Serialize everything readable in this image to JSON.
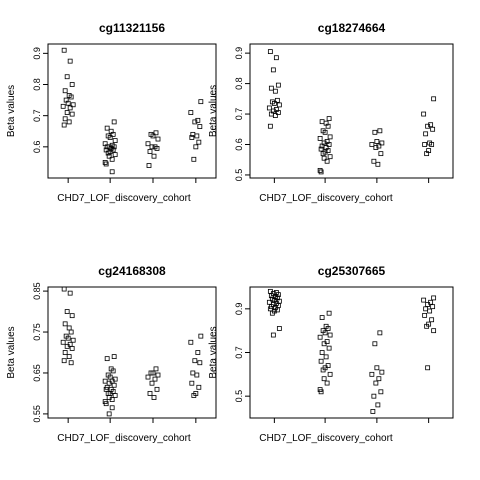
{
  "chart_data": [
    {
      "type": "scatter",
      "title": "cg11321156",
      "xlabel": "CHD7_LOF_discovery_cohort",
      "ylabel": "Beta values",
      "ylim": [
        0.5,
        0.93
      ],
      "yticks": [
        0.6,
        0.7,
        0.8,
        0.9
      ],
      "grid": false,
      "groups": [
        {
          "values": [
            0.91,
            0.875,
            0.825,
            0.8,
            0.78,
            0.765,
            0.76,
            0.75,
            0.74,
            0.735,
            0.73,
            0.725,
            0.71,
            0.705,
            0.69,
            0.68,
            0.67
          ]
        },
        {
          "values": [
            0.68,
            0.66,
            0.65,
            0.64,
            0.635,
            0.63,
            0.62,
            0.61,
            0.605,
            0.6,
            0.6,
            0.6,
            0.595,
            0.59,
            0.59,
            0.585,
            0.58,
            0.575,
            0.57,
            0.56,
            0.55,
            0.545,
            0.52
          ]
        },
        {
          "values": [
            0.645,
            0.64,
            0.635,
            0.625,
            0.61,
            0.6,
            0.6,
            0.595,
            0.585,
            0.57,
            0.54
          ]
        },
        {
          "values": [
            0.745,
            0.71,
            0.685,
            0.68,
            0.665,
            0.64,
            0.635,
            0.63,
            0.615,
            0.6,
            0.56
          ]
        }
      ]
    },
    {
      "type": "scatter",
      "title": "cg18274664",
      "xlabel": "CHD7_LOF_discovery_cohort",
      "ylabel": "Beta values",
      "ylim": [
        0.49,
        0.93
      ],
      "yticks": [
        0.5,
        0.6,
        0.7,
        0.8,
        0.9
      ],
      "grid": false,
      "groups": [
        {
          "values": [
            0.905,
            0.885,
            0.845,
            0.795,
            0.785,
            0.775,
            0.745,
            0.74,
            0.735,
            0.73,
            0.72,
            0.715,
            0.71,
            0.705,
            0.7,
            0.695,
            0.66
          ]
        },
        {
          "values": [
            0.685,
            0.675,
            0.67,
            0.66,
            0.645,
            0.64,
            0.625,
            0.62,
            0.61,
            0.605,
            0.6,
            0.595,
            0.59,
            0.585,
            0.58,
            0.575,
            0.57,
            0.56,
            0.555,
            0.545,
            0.515,
            0.51
          ]
        },
        {
          "values": [
            0.645,
            0.64,
            0.61,
            0.605,
            0.6,
            0.595,
            0.59,
            0.57,
            0.545,
            0.535
          ]
        },
        {
          "values": [
            0.75,
            0.7,
            0.665,
            0.66,
            0.65,
            0.635,
            0.605,
            0.6,
            0.6,
            0.58,
            0.57
          ]
        }
      ]
    },
    {
      "type": "scatter",
      "title": "cg24168308",
      "xlabel": "CHD7_LOF_discovery_cohort",
      "ylabel": "Beta values",
      "ylim": [
        0.54,
        0.86
      ],
      "yticks": [
        0.55,
        0.65,
        0.75,
        0.85
      ],
      "grid": false,
      "groups": [
        {
          "values": [
            0.855,
            0.845,
            0.8,
            0.79,
            0.77,
            0.76,
            0.75,
            0.74,
            0.735,
            0.73,
            0.725,
            0.72,
            0.715,
            0.71,
            0.7,
            0.69,
            0.68,
            0.675
          ]
        },
        {
          "values": [
            0.69,
            0.685,
            0.66,
            0.655,
            0.645,
            0.64,
            0.635,
            0.63,
            0.63,
            0.625,
            0.62,
            0.615,
            0.61,
            0.61,
            0.605,
            0.6,
            0.6,
            0.595,
            0.59,
            0.585,
            0.58,
            0.575,
            0.565,
            0.55
          ]
        },
        {
          "values": [
            0.66,
            0.65,
            0.65,
            0.645,
            0.64,
            0.635,
            0.625,
            0.61,
            0.6,
            0.59
          ]
        },
        {
          "values": [
            0.74,
            0.725,
            0.7,
            0.68,
            0.675,
            0.65,
            0.645,
            0.625,
            0.615,
            0.6,
            0.595
          ]
        }
      ]
    },
    {
      "type": "scatter",
      "title": "cg25307665",
      "xlabel": "CHD7_LOF_discovery_cohort",
      "ylabel": "Beta values",
      "ylim": [
        0.4,
        1.0
      ],
      "yticks": [
        0.5,
        0.7,
        0.9
      ],
      "grid": false,
      "groups": [
        {
          "values": [
            0.98,
            0.975,
            0.97,
            0.965,
            0.96,
            0.955,
            0.95,
            0.945,
            0.94,
            0.935,
            0.93,
            0.925,
            0.92,
            0.915,
            0.91,
            0.905,
            0.9,
            0.895,
            0.89,
            0.88,
            0.81,
            0.78
          ]
        },
        {
          "values": [
            0.88,
            0.86,
            0.82,
            0.81,
            0.8,
            0.79,
            0.78,
            0.77,
            0.75,
            0.74,
            0.72,
            0.7,
            0.68,
            0.66,
            0.64,
            0.63,
            0.62,
            0.6,
            0.58,
            0.56,
            0.53,
            0.52
          ]
        },
        {
          "values": [
            0.79,
            0.74,
            0.63,
            0.61,
            0.6,
            0.58,
            0.56,
            0.52,
            0.5,
            0.46,
            0.43
          ]
        },
        {
          "values": [
            0.95,
            0.94,
            0.93,
            0.92,
            0.91,
            0.9,
            0.89,
            0.87,
            0.85,
            0.83,
            0.82,
            0.8,
            0.63
          ]
        }
      ]
    }
  ]
}
